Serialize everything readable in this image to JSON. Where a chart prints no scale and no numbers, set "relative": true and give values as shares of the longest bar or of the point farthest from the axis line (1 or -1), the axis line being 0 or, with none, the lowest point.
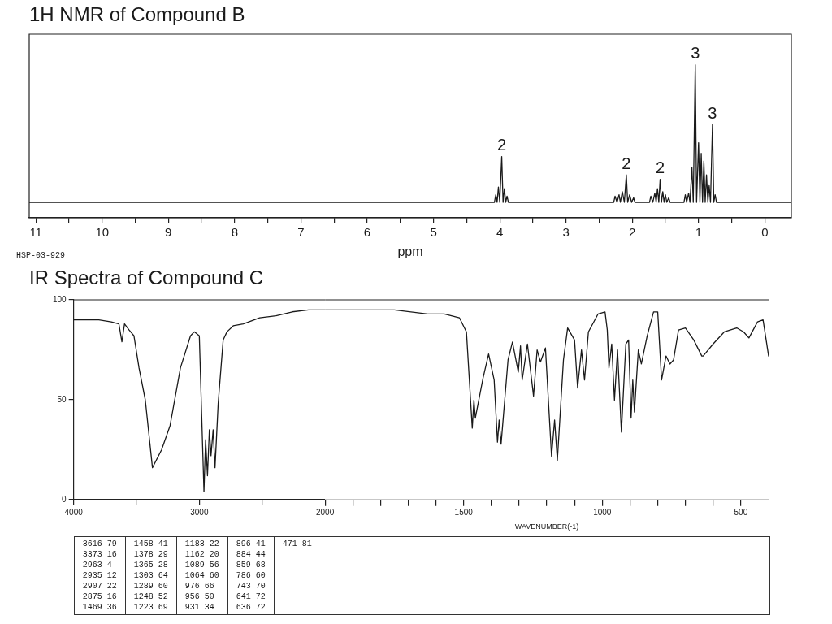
{
  "chart_data": [
    {
      "type": "line",
      "title": "1H NMR of Compound B",
      "xlabel": "ppm",
      "relative": true,
      "marker": "none",
      "color": "#1a1a1a",
      "xlim": [
        11.1,
        -0.4
      ],
      "xticks": [
        11,
        {
          "value": 10.5,
          "label": null
        },
        10,
        {
          "value": 9.5,
          "label": null
        },
        9,
        {
          "value": 8.5,
          "label": null
        },
        8,
        {
          "value": 7.5,
          "label": null
        },
        7,
        {
          "value": 6.5,
          "label": null
        },
        6,
        {
          "value": 5.5,
          "label": null
        },
        5,
        {
          "value": 4.5,
          "label": null
        },
        4,
        {
          "value": 3.5,
          "label": null
        },
        3,
        {
          "value": 2.5,
          "label": null
        },
        2,
        {
          "value": 1.5,
          "label": null
        },
        1,
        {
          "value": 0.5,
          "label": null
        },
        0
      ],
      "x": [
        11.1,
        4.08,
        4.06,
        4.04,
        4.02,
        4.0,
        3.97,
        3.95,
        3.93,
        3.91,
        3.89,
        3.87,
        2.28,
        2.26,
        2.23,
        2.2,
        2.18,
        2.15,
        2.12,
        2.09,
        2.07,
        2.04,
        2.01,
        1.98,
        1.96,
        1.74,
        1.72,
        1.69,
        1.66,
        1.64,
        1.62,
        1.6,
        1.58,
        1.56,
        1.54,
        1.52,
        1.5,
        1.48,
        1.45,
        1.43,
        1.22,
        1.2,
        1.18,
        1.15,
        1.13,
        1.1,
        1.08,
        1.05,
        1.03,
        1.0,
        0.98,
        0.96,
        0.94,
        0.92,
        0.9,
        0.88,
        0.86,
        0.84,
        0.82,
        0.79,
        0.77,
        0.75,
        0.73,
        -0.4
      ],
      "values": [
        0.1,
        0.1,
        0.15,
        0.1,
        0.2,
        0.1,
        0.4,
        0.1,
        0.19,
        0.1,
        0.14,
        0.1,
        0.1,
        0.14,
        0.1,
        0.15,
        0.1,
        0.17,
        0.1,
        0.28,
        0.1,
        0.15,
        0.1,
        0.13,
        0.1,
        0.1,
        0.14,
        0.1,
        0.16,
        0.1,
        0.19,
        0.1,
        0.25,
        0.1,
        0.17,
        0.1,
        0.15,
        0.1,
        0.13,
        0.1,
        0.1,
        0.15,
        0.1,
        0.16,
        0.1,
        0.33,
        0.1,
        1,
        0.1,
        0.49,
        0.1,
        0.42,
        0.1,
        0.37,
        0.1,
        0.28,
        0.1,
        0.21,
        0.1,
        0.61,
        0.1,
        0.15,
        0.1,
        0.1
      ],
      "annotations": [
        {
          "text": "2",
          "x": 3.97,
          "y": 0.4
        },
        {
          "text": "2",
          "x": 2.09,
          "y": 0.28
        },
        {
          "text": "2",
          "x": 1.58,
          "y": 0.25
        },
        {
          "text": "3",
          "x": 1.05,
          "y": 1
        },
        {
          "text": "3",
          "x": 0.79,
          "y": 0.61
        },
        "HSP-03-929"
      ]
    },
    {
      "type": "line",
      "title": "IR Spectra of Compound C",
      "marker": "none",
      "color": "#1a1a1a",
      "xlim": [
        4000,
        2000
      ],
      "xticks": [
        4000,
        {
          "value": 3500,
          "label": null
        },
        3000,
        {
          "value": 2500,
          "label": null
        }
      ],
      "ylim": [
        0,
        100
      ],
      "yticks": [
        0,
        50,
        100
      ],
      "x": [
        4000,
        3800,
        3700,
        3640,
        3616,
        3595,
        3560,
        3520,
        3480,
        3430,
        3373,
        3300,
        3233,
        3150,
        3070,
        3040,
        3000,
        2980,
        2963,
        2950,
        2935,
        2920,
        2907,
        2890,
        2875,
        2850,
        2810,
        2780,
        2730,
        2650,
        2520,
        2390,
        2260,
        2130,
        2000
      ],
      "values": [
        90,
        90,
        89,
        88,
        79,
        88,
        85,
        82,
        66,
        50,
        16,
        25,
        37,
        66,
        82,
        84,
        82,
        40,
        4,
        30,
        12,
        35,
        22,
        35,
        16,
        48,
        80,
        84,
        87,
        88,
        91,
        92,
        94,
        95,
        95
      ],
      "annotations": [
        "3616 79",
        "3373 16",
        "2963 4",
        "2935 12",
        "2907 22",
        "2875 16",
        "1469 36",
        "1458 41",
        "1378 29",
        "1365 28",
        "1303 64",
        "1289 60",
        "1248 52",
        "1223 69",
        "1183 22",
        "1162 20",
        "1089 56",
        "1064 60",
        "976 66",
        "956 50",
        "931 34",
        "896 41",
        "884 44",
        "859 68",
        "786 60",
        "743 70",
        "641 72",
        "636 72",
        "471 81"
      ]
    },
    {
      "type": "line",
      "xlabel": "WAVENUMBER(-1)",
      "marker": "none",
      "color": "#1a1a1a",
      "tick_labels": "x",
      "xlim": [
        2000,
        400
      ],
      "xticks": [
        2000,
        {
          "value": 1900,
          "label": null
        },
        {
          "value": 1800,
          "label": null
        },
        {
          "value": 1700,
          "label": null
        },
        {
          "value": 1600,
          "label": null
        },
        1500,
        {
          "value": 1400,
          "label": null
        },
        {
          "value": 1300,
          "label": null
        },
        {
          "value": 1200,
          "label": null
        },
        {
          "value": 1100,
          "label": null
        },
        1000,
        {
          "value": 900,
          "label": null
        },
        {
          "value": 800,
          "label": null
        },
        {
          "value": 700,
          "label": null
        },
        {
          "value": 600,
          "label": null
        },
        500
      ],
      "ylim": [
        0,
        100
      ],
      "x": [
        2000,
        1900,
        1750,
        1630,
        1570,
        1515,
        1490,
        1469,
        1463,
        1458,
        1430,
        1410,
        1390,
        1378,
        1372,
        1365,
        1340,
        1324,
        1303,
        1295,
        1289,
        1270,
        1248,
        1235,
        1223,
        1205,
        1183,
        1172,
        1162,
        1140,
        1125,
        1100,
        1089,
        1075,
        1064,
        1050,
        1015,
        990,
        982,
        976,
        966,
        956,
        945,
        931,
        915,
        905,
        896,
        890,
        884,
        870,
        859,
        838,
        815,
        800,
        786,
        770,
        756,
        743,
        725,
        700,
        670,
        641,
        636,
        600,
        560,
        515,
        490,
        471,
        440,
        420,
        400
      ],
      "values": [
        95,
        95,
        95,
        93,
        93,
        91,
        84,
        36,
        50,
        41,
        61,
        73,
        60,
        29,
        40,
        28,
        70,
        79,
        64,
        77,
        60,
        78,
        52,
        75,
        69,
        76,
        22,
        40,
        20,
        70,
        86,
        80,
        56,
        75,
        60,
        84,
        93,
        94,
        85,
        66,
        78,
        50,
        75,
        34,
        78,
        80,
        41,
        60,
        44,
        75,
        68,
        82,
        94,
        94,
        60,
        72,
        68,
        70,
        85,
        86,
        80,
        72,
        72,
        78,
        84,
        86,
        84,
        81,
        89,
        90,
        72
      ]
    }
  ]
}
